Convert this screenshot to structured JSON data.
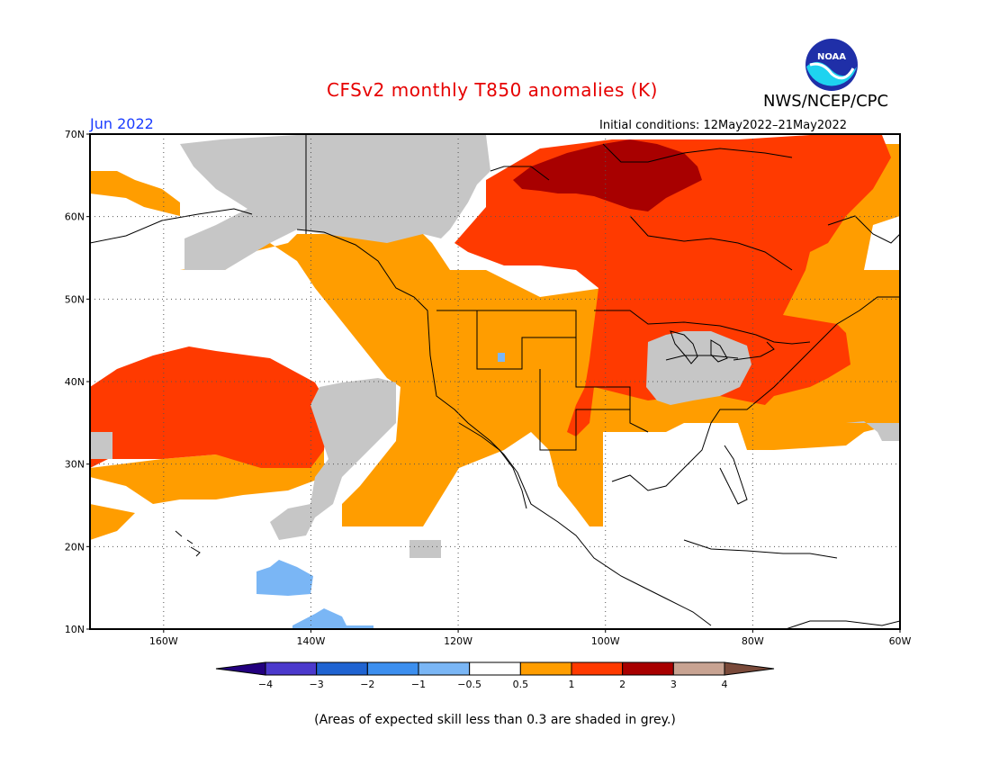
{
  "header": {
    "title": "CFSv2 monthly T850 anomalies (K)",
    "agency": "NWS/NCEP/CPC",
    "logo_text": "NOAA",
    "month": "Jun 2022",
    "initial_conditions": "Initial conditions: 12May2022–21May2022"
  },
  "map": {
    "lat_labels": [
      "70N",
      "60N",
      "50N",
      "40N",
      "30N",
      "20N",
      "10N"
    ],
    "lon_labels": [
      "160W",
      "140W",
      "120W",
      "100W",
      "80W",
      "60W"
    ],
    "lat_range": [
      10,
      70
    ],
    "lon_range": [
      -170,
      -60
    ],
    "grid": "dotted"
  },
  "legend": {
    "labels": [
      "−4",
      "−3",
      "−2",
      "−1",
      "−0.5",
      "0.5",
      "1",
      "2",
      "3",
      "4"
    ],
    "colors": [
      "#23007f",
      "#4b39cc",
      "#1f63d1",
      "#3c8fef",
      "#7ab6f5",
      "#ffffff",
      "#ff9d00",
      "#ff3a00",
      "#a80000",
      "#c8a392",
      "#7a4a3a"
    ]
  },
  "palette": {
    "low_skill_grey": "#c6c6c6",
    "anomaly_0_5_to_1": "#ff9d00",
    "anomaly_1_to_2": "#ff3a00",
    "anomaly_2_to_3": "#a80000",
    "anomaly_neg_0_5_to_neg_1": "#7ab6f5"
  },
  "footnote": "(Areas of expected skill less than 0.3 are shaded in grey.)"
}
